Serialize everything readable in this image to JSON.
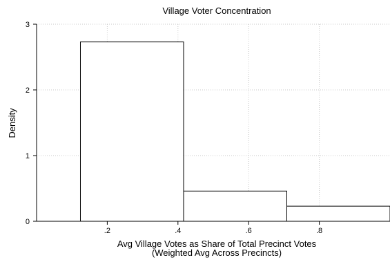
{
  "chart_data": {
    "type": "bar",
    "title": "Village Voter Concentration",
    "xlabel_line1": "Avg Village Votes as Share of Total Precinct Votes",
    "xlabel_line2": "(Weighted Avg Across Precincts)",
    "ylabel": "Density",
    "xlim": [
      0.0,
      1.0
    ],
    "ylim": [
      0,
      3
    ],
    "grid": true,
    "bins": [
      {
        "x0": 0.124,
        "x1": 0.416,
        "density": 2.73
      },
      {
        "x0": 0.416,
        "x1": 0.708,
        "density": 0.46
      },
      {
        "x0": 0.708,
        "x1": 1.0,
        "density": 0.23
      }
    ],
    "xticks": [
      {
        "value": 0.2,
        "label": ".2"
      },
      {
        "value": 0.4,
        "label": ".4"
      },
      {
        "value": 0.6,
        "label": ".6"
      },
      {
        "value": 0.8,
        "label": ".8"
      }
    ],
    "yticks": [
      {
        "value": 0,
        "label": "0"
      },
      {
        "value": 1,
        "label": "1"
      },
      {
        "value": 2,
        "label": "2"
      },
      {
        "value": 3,
        "label": "3"
      }
    ]
  }
}
